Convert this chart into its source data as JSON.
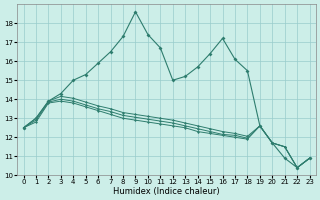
{
  "xlabel": "Humidex (Indice chaleur)",
  "ylabel": "",
  "bg_color": "#cceee8",
  "grid_color": "#99cccc",
  "line_color": "#2e7d6e",
  "x": [
    0,
    1,
    2,
    3,
    4,
    5,
    6,
    7,
    8,
    9,
    10,
    11,
    12,
    13,
    14,
    15,
    16,
    17,
    18,
    19,
    20,
    21,
    22,
    23
  ],
  "y_main": [
    12.5,
    13.0,
    13.9,
    14.3,
    15.0,
    15.3,
    15.9,
    16.5,
    17.3,
    18.6,
    17.4,
    16.7,
    15.0,
    15.2,
    15.7,
    16.4,
    17.2,
    16.1,
    15.5,
    12.6,
    11.7,
    10.9,
    10.4,
    10.9
  ],
  "y_line1": [
    12.5,
    12.8,
    13.8,
    13.9,
    13.8,
    13.6,
    13.4,
    13.2,
    13.0,
    12.9,
    12.8,
    12.7,
    12.6,
    12.5,
    12.3,
    12.2,
    12.1,
    12.0,
    11.9,
    12.6,
    11.7,
    11.5,
    10.4,
    10.9
  ],
  "y_line2": [
    12.5,
    12.9,
    13.85,
    14.0,
    13.9,
    13.7,
    13.5,
    13.35,
    13.15,
    13.05,
    12.95,
    12.85,
    12.75,
    12.6,
    12.45,
    12.3,
    12.15,
    12.1,
    11.95,
    12.6,
    11.7,
    11.5,
    10.4,
    10.9
  ],
  "y_line3": [
    12.5,
    13.0,
    13.9,
    14.15,
    14.05,
    13.85,
    13.65,
    13.5,
    13.3,
    13.2,
    13.1,
    13.0,
    12.9,
    12.75,
    12.6,
    12.45,
    12.3,
    12.2,
    12.05,
    12.6,
    11.7,
    11.5,
    10.4,
    10.9
  ],
  "ylim": [
    10,
    19
  ],
  "xlim": [
    -0.5,
    23.5
  ],
  "yticks": [
    10,
    11,
    12,
    13,
    14,
    15,
    16,
    17,
    18
  ],
  "xticks": [
    0,
    1,
    2,
    3,
    4,
    5,
    6,
    7,
    8,
    9,
    10,
    11,
    12,
    13,
    14,
    15,
    16,
    17,
    18,
    19,
    20,
    21,
    22,
    23
  ],
  "title_fontsize": 7,
  "tick_fontsize": 5,
  "xlabel_fontsize": 6
}
